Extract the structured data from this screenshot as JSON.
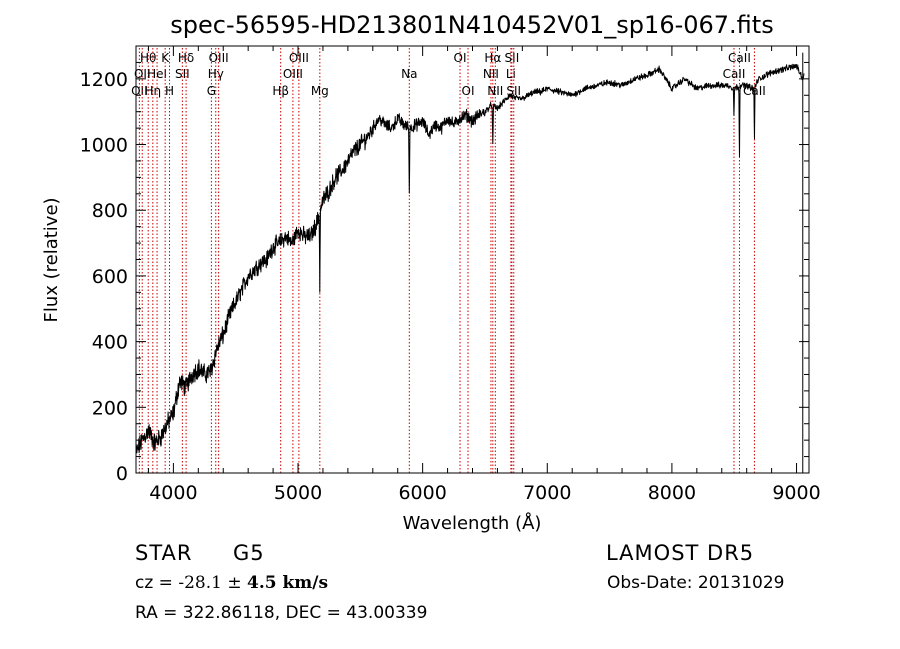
{
  "chart_data": {
    "type": "line",
    "title": "spec-56595-HD213801N410452V01_sp16-067.fits",
    "xlabel": "Wavelength (Å)",
    "ylabel": "Flux (relative)",
    "xlim": [
      3700,
      9100
    ],
    "ylim": [
      0,
      1300
    ],
    "x_ticks": [
      4000,
      5000,
      6000,
      7000,
      8000,
      9000
    ],
    "y_ticks": [
      0,
      200,
      400,
      600,
      800,
      1000,
      1200
    ],
    "grid": false,
    "series": [
      {
        "x": [
          3700,
          3750,
          3800,
          3850,
          3900,
          3950,
          4000,
          4050,
          4100,
          4150,
          4200,
          4250,
          4300,
          4350,
          4400,
          4450,
          4500,
          4550,
          4600,
          4650,
          4700,
          4750,
          4800,
          4850,
          4900,
          4950,
          5000,
          5050,
          5100,
          5150,
          5200,
          5250,
          5300,
          5350,
          5400,
          5450,
          5500,
          5550,
          5600,
          5650,
          5700,
          5750,
          5800,
          5850,
          5900,
          5950,
          6000,
          6050,
          6100,
          6150,
          6200,
          6250,
          6300,
          6350,
          6400,
          6450,
          6500,
          6550,
          6600,
          6650,
          6700,
          6750,
          6800,
          6850,
          6900,
          6950,
          7000,
          7100,
          7200,
          7300,
          7400,
          7500,
          7600,
          7700,
          7800,
          7900,
          8000,
          8100,
          8200,
          8300,
          8400,
          8450,
          8500,
          8550,
          8600,
          8650,
          8700,
          8800,
          8900,
          9000,
          9050,
          9100
        ],
        "y": [
          60,
          100,
          130,
          90,
          110,
          150,
          180,
          280,
          260,
          300,
          320,
          300,
          310,
          380,
          420,
          480,
          520,
          560,
          600,
          620,
          640,
          650,
          690,
          700,
          720,
          700,
          740,
          720,
          720,
          760,
          830,
          860,
          900,
          920,
          950,
          980,
          1000,
          1020,
          1050,
          1080,
          1060,
          1050,
          1080,
          1060,
          1050,
          1060,
          1070,
          1030,
          1060,
          1050,
          1080,
          1060,
          1080,
          1090,
          1070,
          1090,
          1100,
          1120,
          1110,
          1130,
          1150,
          1140,
          1140,
          1150,
          1160,
          1160,
          1170,
          1160,
          1150,
          1170,
          1180,
          1190,
          1180,
          1200,
          1210,
          1230,
          1170,
          1200,
          1170,
          1180,
          1180,
          1180,
          1170,
          1180,
          1180,
          1170,
          1200,
          1220,
          1230,
          1240,
          1200,
          1260
        ]
      }
    ],
    "absorption_features": [
      {
        "x": 5893,
        "y": 830
      },
      {
        "x": 6563,
        "y": 990
      },
      {
        "x": 8498,
        "y": 1080
      },
      {
        "x": 8542,
        "y": 940
      },
      {
        "x": 8662,
        "y": 1000
      },
      {
        "x": 5175,
        "y": 550
      }
    ],
    "line_markers": [
      {
        "wavelength": 3727,
        "label": "OII",
        "row": 2
      },
      {
        "wavelength": 3750,
        "label": "OII",
        "row": 1
      },
      {
        "wavelength": 3798,
        "label": "Hθ",
        "row": 0
      },
      {
        "wavelength": 3835,
        "label": "Hη",
        "row": 2
      },
      {
        "wavelength": 3869,
        "label": "HeI",
        "row": 1
      },
      {
        "wavelength": 3934,
        "label": "K",
        "row": 0
      },
      {
        "wavelength": 3969,
        "label": "H",
        "row": 2
      },
      {
        "wavelength": 4072,
        "label": "SII",
        "row": 1
      },
      {
        "wavelength": 4102,
        "label": "Hδ",
        "row": 0
      },
      {
        "wavelength": 4305,
        "label": "G",
        "row": 2
      },
      {
        "wavelength": 4340,
        "label": "Hγ",
        "row": 1
      },
      {
        "wavelength": 4363,
        "label": "OIII",
        "row": 0
      },
      {
        "wavelength": 4861,
        "label": "Hβ",
        "row": 2
      },
      {
        "wavelength": 4959,
        "label": "OIII",
        "row": 1
      },
      {
        "wavelength": 5007,
        "label": "OIII",
        "row": 0
      },
      {
        "wavelength": 5175,
        "label": "Mg",
        "row": 2
      },
      {
        "wavelength": 5893,
        "label": "Na",
        "row": 1
      },
      {
        "wavelength": 6300,
        "label": "OI",
        "row": 0
      },
      {
        "wavelength": 6364,
        "label": "OI",
        "row": 2
      },
      {
        "wavelength": 6548,
        "label": "NII",
        "row": 1
      },
      {
        "wavelength": 6563,
        "label": "Hα",
        "row": 0
      },
      {
        "wavelength": 6583,
        "label": "NII",
        "row": 2
      },
      {
        "wavelength": 6708,
        "label": "Li",
        "row": 1
      },
      {
        "wavelength": 6716,
        "label": "SII",
        "row": 0
      },
      {
        "wavelength": 6731,
        "label": "SII",
        "row": 2
      },
      {
        "wavelength": 8498,
        "label": "CaII",
        "row": 1
      },
      {
        "wavelength": 8542,
        "label": "CaII",
        "row": 0
      },
      {
        "wavelength": 8662,
        "label": "CaII",
        "row": 2
      }
    ]
  },
  "info": {
    "object_class": "STAR",
    "subclass": "G5",
    "survey": "LAMOST  DR5",
    "cz_label": "cz = ",
    "cz_value": "-28.1",
    "cz_pm": "±",
    "cz_error": "4.5 km/s",
    "obs_date": "Obs-Date: 20131029",
    "coords": "RA = 322.86118, DEC =  43.00339"
  },
  "colors": {
    "spectrum": "#000000",
    "line_marker": "#cc0000",
    "axis": "#000000"
  }
}
